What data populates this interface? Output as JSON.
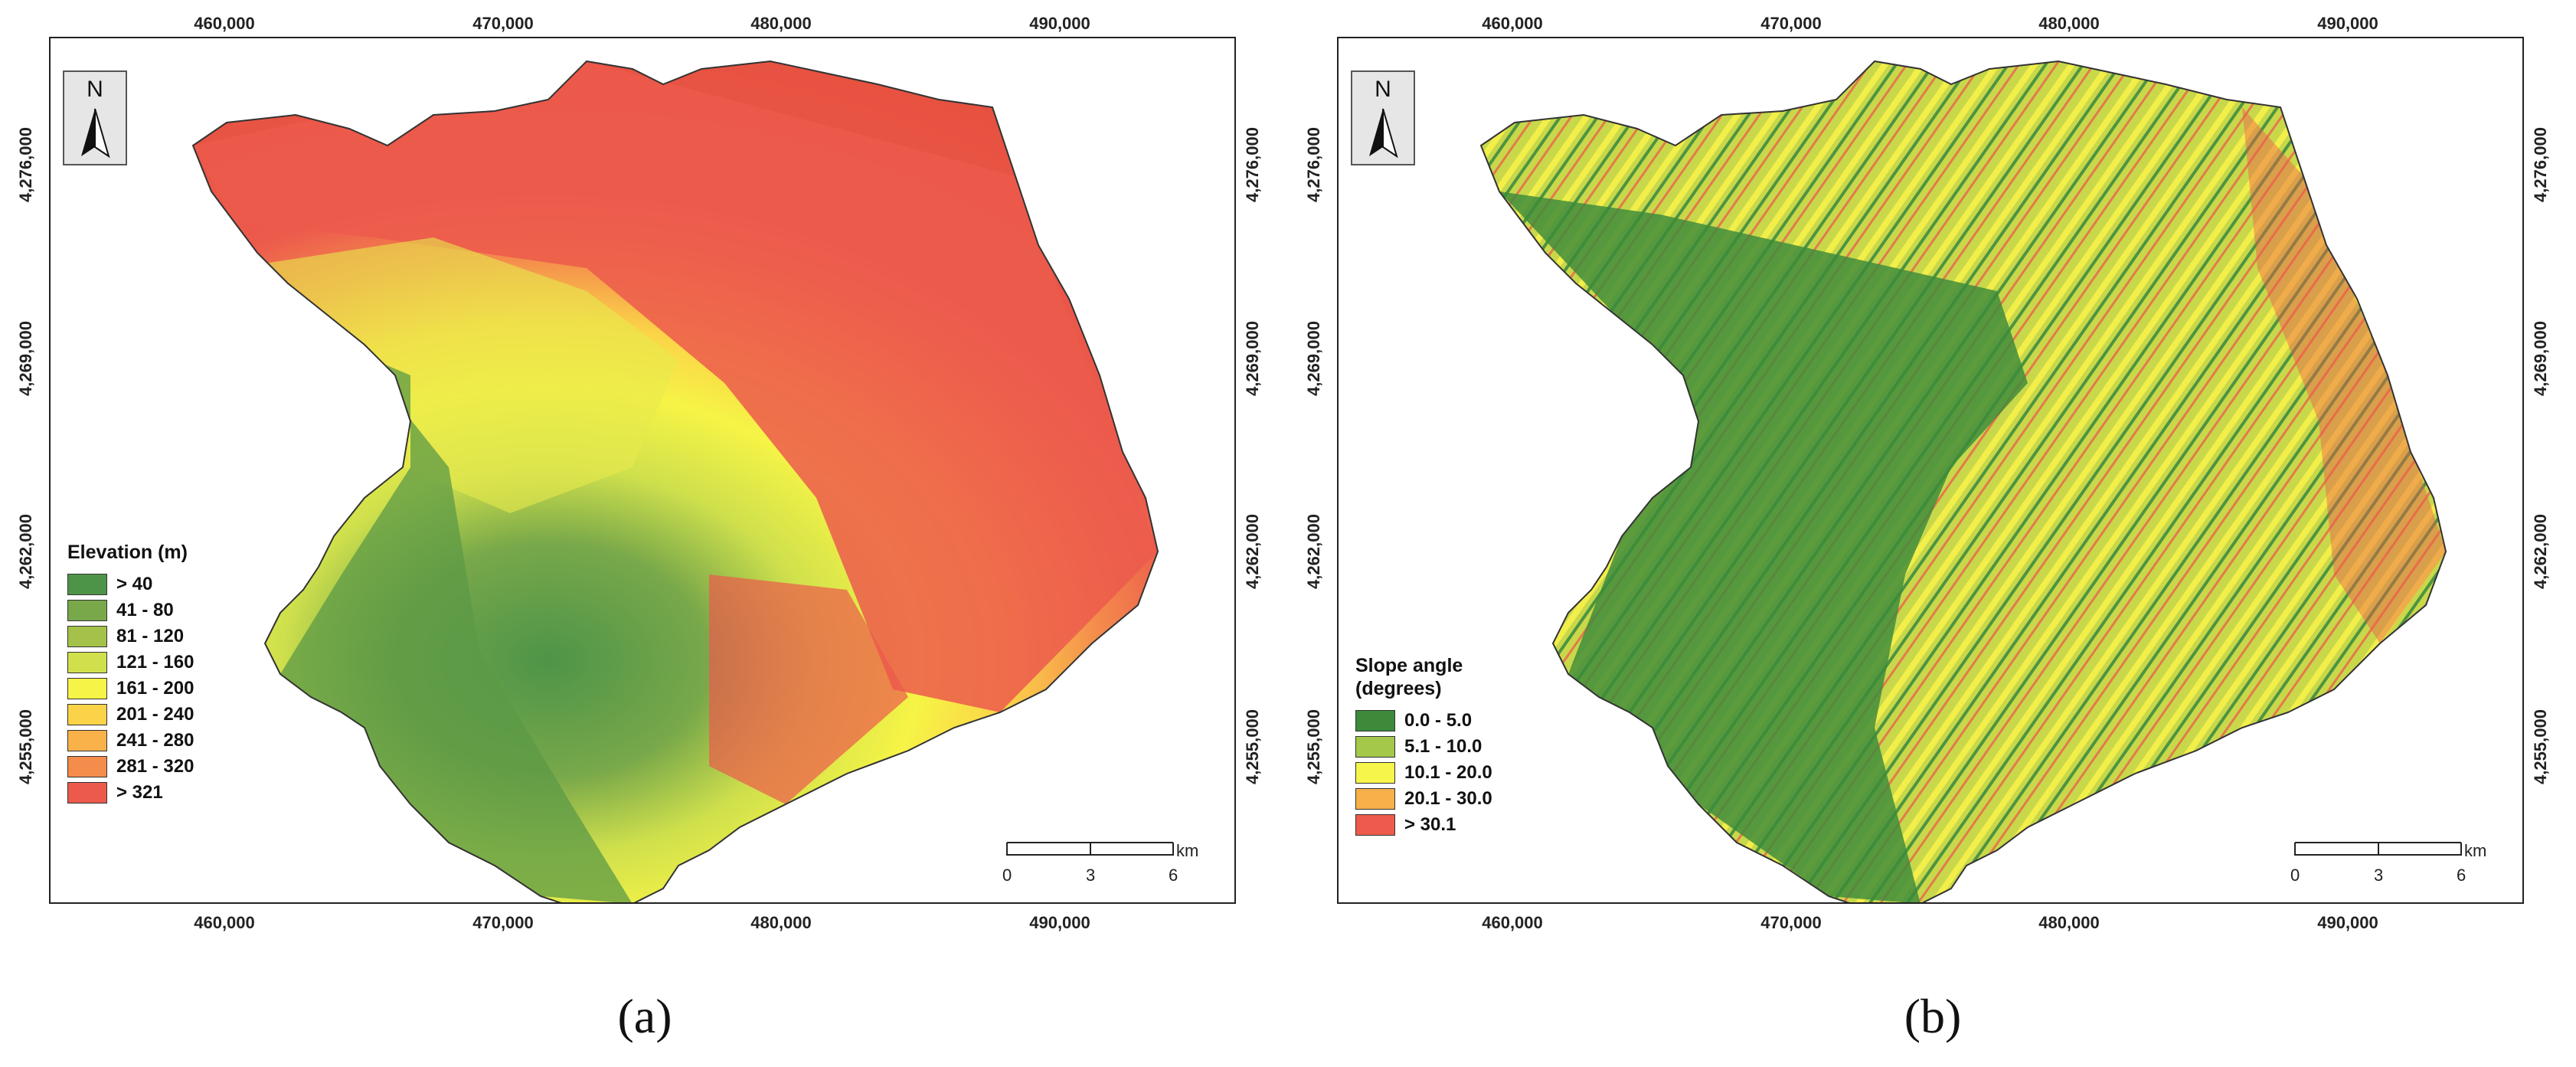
{
  "panels": [
    {
      "id": "a",
      "caption": "(a)",
      "x_ticks": [
        "460,000",
        "470,000",
        "480,000",
        "490,000"
      ],
      "y_ticks": [
        "4,276,000",
        "4,269,000",
        "4,262,000",
        "4,255,000"
      ],
      "north_label": "N",
      "legend": {
        "title": "Elevation (m)",
        "classes": [
          {
            "label": "> 40",
            "color": "#4e9448"
          },
          {
            "label": "41 - 80",
            "color": "#78a84a"
          },
          {
            "label": "81 - 120",
            "color": "#a4c24a"
          },
          {
            "label": "121 - 160",
            "color": "#cfe04c"
          },
          {
            "label": "161 - 200",
            "color": "#f6f446"
          },
          {
            "label": "201 - 240",
            "color": "#fbd348"
          },
          {
            "label": "241 - 280",
            "color": "#f9b14a"
          },
          {
            "label": "281 - 320",
            "color": "#f48c4c"
          },
          {
            "label": "> 321",
            "color": "#ec5a4c"
          }
        ]
      },
      "scale": {
        "labels": [
          "0",
          "3",
          "6"
        ],
        "unit": "km"
      }
    },
    {
      "id": "b",
      "caption": "(b)",
      "x_ticks": [
        "460,000",
        "470,000",
        "480,000",
        "490,000"
      ],
      "y_ticks": [
        "4,276,000",
        "4,269,000",
        "4,262,000",
        "4,255,000"
      ],
      "north_label": "N",
      "legend": {
        "title": "Slope angle\n(degrees)",
        "classes": [
          {
            "label": "0.0 - 5.0",
            "color": "#3c8a3a"
          },
          {
            "label": "5.1 - 10.0",
            "color": "#a4c84a"
          },
          {
            "label": "10.1 - 20.0",
            "color": "#f6f64a"
          },
          {
            "label": "20.1 - 30.0",
            "color": "#f8b04a"
          },
          {
            "label": "> 30.1",
            "color": "#ee5a4c"
          }
        ]
      },
      "scale": {
        "labels": [
          "0",
          "3",
          "6"
        ],
        "unit": "km"
      }
    }
  ]
}
